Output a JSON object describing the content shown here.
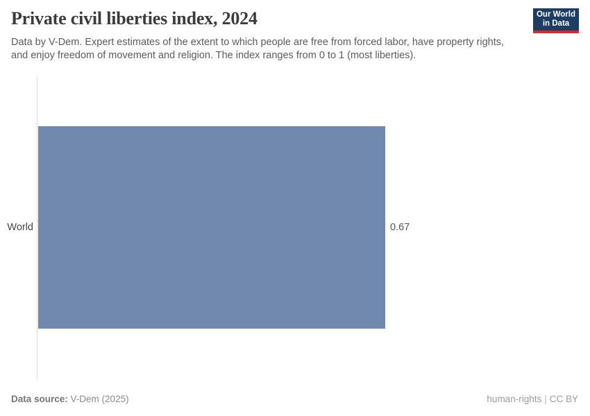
{
  "header": {
    "title": "Private civil liberties index, 2024",
    "subtitle_line1": "Data by V-Dem. Expert estimates of the extent to which people are free from forced labor, have property rights,",
    "subtitle_line2": "and enjoy freedom of movement and religion. The index ranges from 0 to 1 (most liberties).",
    "logo": {
      "line1": "Our World",
      "line2": "in Data",
      "bg_color": "#1d3d63",
      "accent_color": "#d42b2b"
    }
  },
  "chart_data": {
    "type": "bar",
    "orientation": "horizontal",
    "title": "Private civil liberties index, 2024",
    "categories": [
      "World"
    ],
    "values": [
      0.67
    ],
    "value_labels": [
      "0.67"
    ],
    "xlabel": "",
    "ylabel": "",
    "xlim": [
      0,
      1
    ],
    "grid": false,
    "legend": false,
    "bar_color": "#7189ae",
    "axis_line_color": "#dedede"
  },
  "footer": {
    "data_source_label": "Data source:",
    "data_source_value": "V-Dem (2025)",
    "tag": "human-rights",
    "separator": "|",
    "license": "CC BY"
  }
}
